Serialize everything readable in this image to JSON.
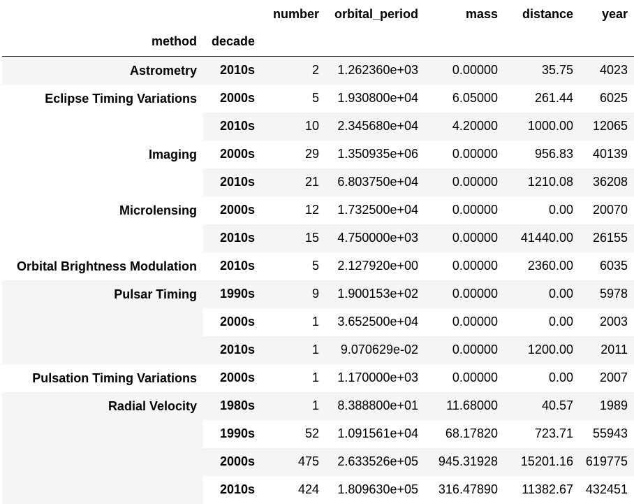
{
  "header": {
    "columns": [
      "number",
      "orbital_period",
      "mass",
      "distance",
      "year"
    ],
    "index_names": [
      "method",
      "decade"
    ]
  },
  "groups": [
    {
      "method": "Astrometry",
      "rows": [
        {
          "decade": "2010s",
          "number": "2",
          "orbital_period": "1.262360e+03",
          "mass": "0.00000",
          "distance": "35.75",
          "year": "4023"
        }
      ]
    },
    {
      "method": "Eclipse Timing Variations",
      "rows": [
        {
          "decade": "2000s",
          "number": "5",
          "orbital_period": "1.930800e+04",
          "mass": "6.05000",
          "distance": "261.44",
          "year": "6025"
        },
        {
          "decade": "2010s",
          "number": "10",
          "orbital_period": "2.345680e+04",
          "mass": "4.20000",
          "distance": "1000.00",
          "year": "12065"
        }
      ]
    },
    {
      "method": "Imaging",
      "rows": [
        {
          "decade": "2000s",
          "number": "29",
          "orbital_period": "1.350935e+06",
          "mass": "0.00000",
          "distance": "956.83",
          "year": "40139"
        },
        {
          "decade": "2010s",
          "number": "21",
          "orbital_period": "6.803750e+04",
          "mass": "0.00000",
          "distance": "1210.08",
          "year": "36208"
        }
      ]
    },
    {
      "method": "Microlensing",
      "rows": [
        {
          "decade": "2000s",
          "number": "12",
          "orbital_period": "1.732500e+04",
          "mass": "0.00000",
          "distance": "0.00",
          "year": "20070"
        },
        {
          "decade": "2010s",
          "number": "15",
          "orbital_period": "4.750000e+03",
          "mass": "0.00000",
          "distance": "41440.00",
          "year": "26155"
        }
      ]
    },
    {
      "method": "Orbital Brightness Modulation",
      "rows": [
        {
          "decade": "2010s",
          "number": "5",
          "orbital_period": "2.127920e+00",
          "mass": "0.00000",
          "distance": "2360.00",
          "year": "6035"
        }
      ]
    },
    {
      "method": "Pulsar Timing",
      "rows": [
        {
          "decade": "1990s",
          "number": "9",
          "orbital_period": "1.900153e+02",
          "mass": "0.00000",
          "distance": "0.00",
          "year": "5978"
        },
        {
          "decade": "2000s",
          "number": "1",
          "orbital_period": "3.652500e+04",
          "mass": "0.00000",
          "distance": "0.00",
          "year": "2003"
        },
        {
          "decade": "2010s",
          "number": "1",
          "orbital_period": "9.070629e-02",
          "mass": "0.00000",
          "distance": "1200.00",
          "year": "2011"
        }
      ]
    },
    {
      "method": "Pulsation Timing Variations",
      "rows": [
        {
          "decade": "2000s",
          "number": "1",
          "orbital_period": "1.170000e+03",
          "mass": "0.00000",
          "distance": "0.00",
          "year": "2007"
        }
      ]
    },
    {
      "method": "Radial Velocity",
      "rows": [
        {
          "decade": "1980s",
          "number": "1",
          "orbital_period": "8.388800e+01",
          "mass": "11.68000",
          "distance": "40.57",
          "year": "1989"
        },
        {
          "decade": "1990s",
          "number": "52",
          "orbital_period": "1.091561e+04",
          "mass": "68.17820",
          "distance": "723.71",
          "year": "55943"
        },
        {
          "decade": "2000s",
          "number": "475",
          "orbital_period": "2.633526e+05",
          "mass": "945.31928",
          "distance": "15201.16",
          "year": "619775"
        },
        {
          "decade": "2010s",
          "number": "424",
          "orbital_period": "1.809630e+05",
          "mass": "316.47890",
          "distance": "11382.67",
          "year": "432451"
        }
      ]
    }
  ]
}
